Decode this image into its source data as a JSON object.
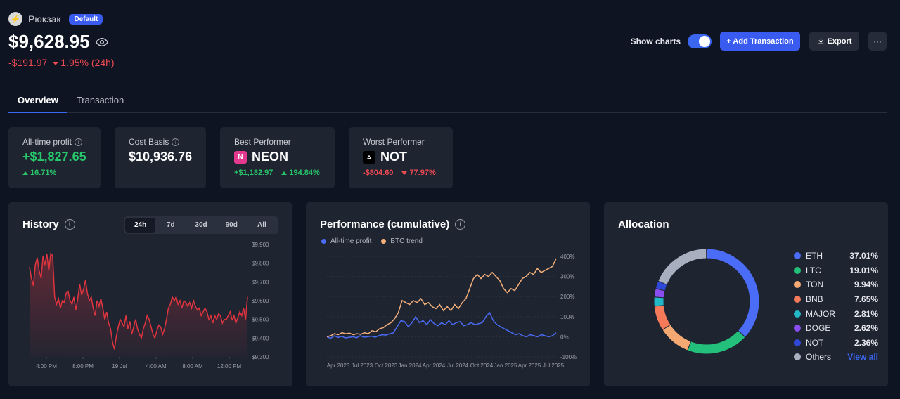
{
  "header": {
    "wallet_name": "Рюкзак",
    "badge": "Default",
    "balance": "$9,628.95",
    "change_abs": "-$191.97",
    "change_pct": "1.95% (24h)"
  },
  "actions": {
    "show_charts_label": "Show charts",
    "show_charts_on": true,
    "add_transaction": "+ Add Transaction",
    "export": "Export",
    "more": "···"
  },
  "tabs": [
    "Overview",
    "Transaction"
  ],
  "stats": {
    "all_time_profit": {
      "label": "All-time profit",
      "value": "+$1,827.65",
      "pct": "16.71%"
    },
    "cost_basis": {
      "label": "Cost Basis",
      "value": "$10,936.76"
    },
    "best_performer": {
      "label": "Best Performer",
      "coin": "NEON",
      "abs": "+$1,182.97",
      "pct": "194.84%"
    },
    "worst_performer": {
      "label": "Worst Performer",
      "coin": "NOT",
      "abs": "-$804.60",
      "pct": "77.97%"
    }
  },
  "history": {
    "title": "History",
    "ranges": [
      "24h",
      "7d",
      "30d",
      "90d",
      "All"
    ],
    "active_range": "24h"
  },
  "performance": {
    "title": "Performance (cumulative)",
    "legend": [
      "All-time profit",
      "BTC trend"
    ]
  },
  "allocation": {
    "title": "Allocation",
    "view_all": "View all",
    "items": [
      {
        "name": "ETH",
        "pct": "37.01%",
        "value": 37.01,
        "color": "#4a6cf7"
      },
      {
        "name": "LTC",
        "pct": "19.01%",
        "value": 19.01,
        "color": "#22c07a"
      },
      {
        "name": "TON",
        "pct": "9.94%",
        "value": 9.94,
        "color": "#f5a972"
      },
      {
        "name": "BNB",
        "pct": "7.65%",
        "value": 7.65,
        "color": "#f47a5a"
      },
      {
        "name": "MAJOR",
        "pct": "2.81%",
        "value": 2.81,
        "color": "#22b8c8"
      },
      {
        "name": "DOGE",
        "pct": "2.62%",
        "value": 2.62,
        "color": "#8a4ef0"
      },
      {
        "name": "NOT",
        "pct": "2.36%",
        "value": 2.36,
        "color": "#3048d8"
      },
      {
        "name": "Others",
        "pct": "",
        "value": 18.6,
        "color": "#a8b0bf"
      }
    ]
  },
  "chart_data": [
    {
      "type": "area",
      "title": "History",
      "x_ticks": [
        "4:00 PM",
        "8:00 PM",
        "19 Jul",
        "4:00 AM",
        "8:00 AM",
        "12:00 PM"
      ],
      "y_ticks": [
        "$9,300",
        "$9,400",
        "$9,500",
        "$9,600",
        "$9,700",
        "$9,800",
        "$9,900"
      ],
      "ylim": [
        9300,
        9900
      ],
      "color": "#e0343f",
      "values": [
        9780,
        9720,
        9680,
        9790,
        9830,
        9760,
        9720,
        9840,
        9790,
        9850,
        9760,
        9850,
        9840,
        9620,
        9580,
        9610,
        9560,
        9600,
        9590,
        9640,
        9650,
        9600,
        9580,
        9620,
        9550,
        9610,
        9690,
        9630,
        9660,
        9710,
        9640,
        9600,
        9620,
        9560,
        9520,
        9600,
        9570,
        9610,
        9560,
        9500,
        9540,
        9480,
        9450,
        9380,
        9340,
        9410,
        9460,
        9500,
        9480,
        9460,
        9520,
        9450,
        9490,
        9420,
        9460,
        9500,
        9450,
        9420,
        9400,
        9450,
        9480,
        9520,
        9500,
        9460,
        9420,
        9400,
        9440,
        9470,
        9460,
        9420,
        9450,
        9500,
        9560,
        9580,
        9620,
        9600,
        9620,
        9580,
        9600,
        9560,
        9600,
        9590,
        9570,
        9590,
        9560,
        9600,
        9570,
        9550,
        9560,
        9520,
        9540,
        9560,
        9540,
        9500,
        9520,
        9480,
        9520,
        9500,
        9530,
        9520,
        9480,
        9500,
        9500,
        9520,
        9540,
        9500,
        9520,
        9480,
        9510,
        9540,
        9520,
        9560,
        9500,
        9620
      ]
    },
    {
      "type": "line",
      "title": "Performance (cumulative)",
      "x_ticks": [
        "Apr 2023",
        "Jul 2023",
        "Oct 2023",
        "Jan 2024",
        "Apr 2024",
        "Jul 2024",
        "Oct 2024",
        "Jan 2025",
        "Apr 2025",
        "Jul 2025"
      ],
      "y_ticks": [
        "-100%",
        "0%",
        "100%",
        "200%",
        "300%",
        "400%"
      ],
      "ylim": [
        -100,
        400
      ],
      "series": [
        {
          "name": "All-time profit",
          "color": "#4a6cf7",
          "values": [
            0,
            -8,
            5,
            -4,
            2,
            -6,
            -3,
            0,
            -5,
            5,
            -2,
            0,
            3,
            -2,
            5,
            10,
            8,
            15,
            20,
            50,
            80,
            75,
            50,
            70,
            100,
            70,
            80,
            60,
            85,
            65,
            55,
            70,
            60,
            80,
            60,
            70,
            75,
            55,
            60,
            70,
            60,
            65,
            70,
            100,
            120,
            80,
            60,
            50,
            40,
            30,
            20,
            10,
            15,
            5,
            0,
            10,
            5,
            0,
            10,
            5,
            0,
            5,
            20
          ]
        },
        {
          "name": "BTC trend",
          "color": "#f5b07a",
          "values": [
            0,
            5,
            15,
            10,
            20,
            15,
            18,
            10,
            15,
            12,
            20,
            15,
            30,
            25,
            40,
            45,
            60,
            70,
            90,
            120,
            180,
            170,
            160,
            180,
            170,
            190,
            160,
            170,
            150,
            140,
            160,
            130,
            150,
            130,
            160,
            140,
            170,
            190,
            240,
            290,
            310,
            290,
            310,
            300,
            320,
            300,
            280,
            240,
            220,
            240,
            230,
            260,
            290,
            300,
            320,
            310,
            340,
            320,
            330,
            340,
            350,
            390
          ]
        }
      ]
    },
    {
      "type": "pie",
      "title": "Allocation",
      "categories": [
        "ETH",
        "LTC",
        "TON",
        "BNB",
        "MAJOR",
        "DOGE",
        "NOT",
        "Others"
      ],
      "values": [
        37.01,
        19.01,
        9.94,
        7.65,
        2.81,
        2.62,
        2.36,
        18.6
      ]
    }
  ]
}
